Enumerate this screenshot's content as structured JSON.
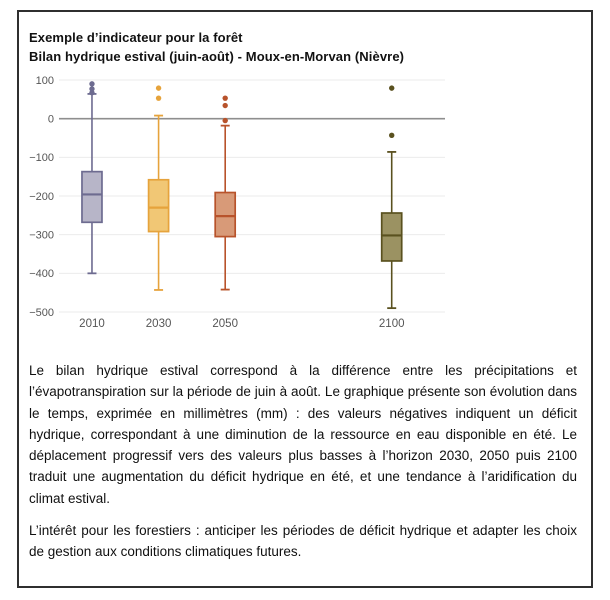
{
  "frame": {
    "title_line1": "Exemple d’indicateur pour la forêt",
    "title_line2": "Bilan hydrique estival (juin-août) - Moux-en-Morvan (Nièvre)"
  },
  "chart_data": {
    "type": "boxplot",
    "title": "Bilan hydrique estival (juin-août) - Moux-en-Morvan (Nièvre)",
    "xlabel": "",
    "ylabel": "",
    "unit": "mm",
    "xlim": [
      2001,
      2116
    ],
    "ylim": [
      -500,
      100
    ],
    "y_ticks": [
      100,
      0,
      -100,
      -200,
      -300,
      -400,
      -500
    ],
    "zero_line": 0,
    "grid": "on",
    "legend": "none",
    "colors": {
      "grid": "#ebebeb",
      "zero_line": "#8e8e8e",
      "tick_text": "#555555"
    },
    "series": [
      {
        "label": "2010",
        "year": 2010,
        "whisker_low": -400,
        "q1": -268,
        "median": -196,
        "q3": -137,
        "whisker_high": 64,
        "outliers": [
          90,
          77,
          67
        ],
        "stroke": "#6d6b90",
        "fill": "#b7b5c8"
      },
      {
        "label": "2030",
        "year": 2030,
        "whisker_low": -443,
        "q1": -292,
        "median": -230,
        "q3": -158,
        "whisker_high": 8,
        "outliers": [
          79,
          53
        ],
        "stroke": "#e6a33c",
        "fill": "#f1c775"
      },
      {
        "label": "2050",
        "year": 2050,
        "whisker_low": -442,
        "q1": -305,
        "median": -252,
        "q3": -191,
        "whisker_high": -18,
        "outliers": [
          53,
          34,
          -5
        ],
        "stroke": "#b8532b",
        "fill": "#d89a78"
      },
      {
        "label": "2100",
        "year": 2100,
        "whisker_low": -490,
        "q1": -368,
        "median": -302,
        "q3": -244,
        "whisker_high": -86,
        "outliers": [
          79,
          -43
        ],
        "stroke": "#5a511f",
        "fill": "#9b9262"
      }
    ]
  },
  "body": {
    "paragraph1": "Le bilan hydrique estival correspond à la différence entre les précipitations et l’évapotranspiration sur la période de juin à août. Le graphique présente son évolution dans le temps, exprimée en millimètres (mm) : des valeurs négatives indiquent un déficit hydrique, correspondant à une diminution de la ressource en eau disponible en été. Le déplacement progressif vers des valeurs plus basses à l’horizon 2030, 2050 puis 2100 traduit une augmentation du déficit hydrique en été, et une tendance à l’aridification du climat estival.",
    "paragraph2": "L’intérêt pour les forestiers : anticiper les périodes de déficit hydrique et adapter les choix de gestion aux conditions climatiques futures."
  }
}
